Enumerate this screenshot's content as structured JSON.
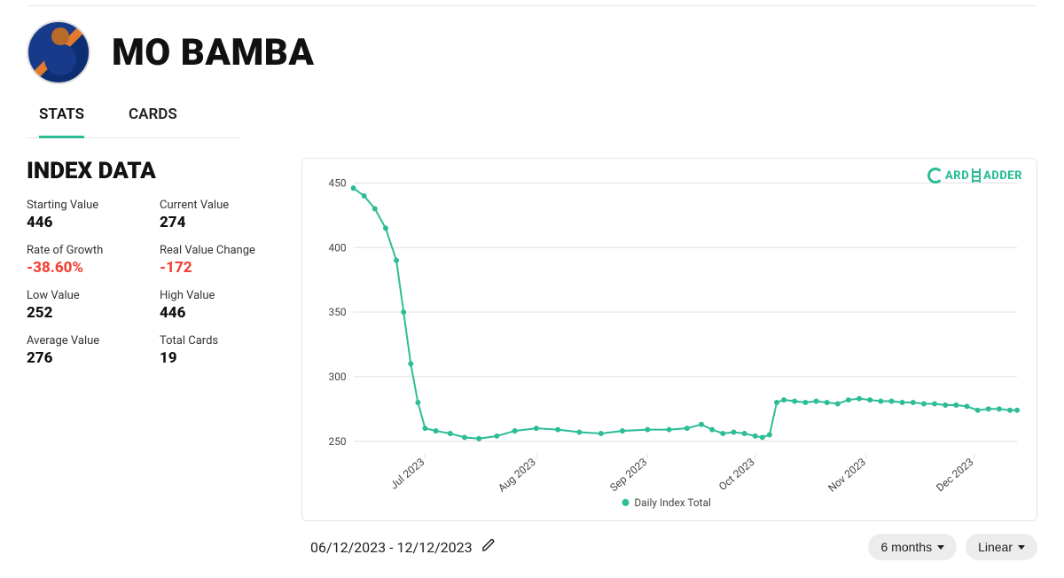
{
  "player": {
    "name": "MO BAMBA"
  },
  "tabs": {
    "stats": "STATS",
    "cards": "CARDS",
    "active": "stats"
  },
  "section_title": "INDEX DATA",
  "stats": {
    "starting_value": {
      "label": "Starting Value",
      "value": "446"
    },
    "current_value": {
      "label": "Current Value",
      "value": "274"
    },
    "rate_of_growth": {
      "label": "Rate of Growth",
      "value": "-38.60%",
      "negative": true
    },
    "real_value_change": {
      "label": "Real Value Change",
      "value": "-172",
      "negative": true
    },
    "low_value": {
      "label": "Low Value",
      "value": "252"
    },
    "high_value": {
      "label": "High Value",
      "value": "446"
    },
    "average_value": {
      "label": "Average Value",
      "value": "276"
    },
    "total_cards": {
      "label": "Total Cards",
      "value": "19"
    }
  },
  "date_range": "06/12/2023 - 12/12/2023",
  "controls": {
    "range": "6 months",
    "scale": "Linear"
  },
  "brand": {
    "left": "ARD",
    "right": "ADDER"
  },
  "chart": {
    "type": "line",
    "series_name": "Daily Index Total",
    "line_color": "#2dbd96",
    "line_width": 2,
    "marker_radius": 3,
    "background_color": "#ffffff",
    "grid_color": "#e0e0e0",
    "axis_text_color": "#444444",
    "axis_fontsize": 12,
    "ylim": [
      240,
      455
    ],
    "yticks": [
      250,
      300,
      350,
      400,
      450
    ],
    "xlim": [
      0,
      185
    ],
    "xticks": [
      {
        "pos": 20,
        "label": "Jul 2023"
      },
      {
        "pos": 51,
        "label": "Aug 2023"
      },
      {
        "pos": 82,
        "label": "Sep 2023"
      },
      {
        "pos": 112,
        "label": "Oct 2023"
      },
      {
        "pos": 143,
        "label": "Nov 2023"
      },
      {
        "pos": 173,
        "label": "Dec 2023"
      }
    ],
    "data": [
      {
        "x": 0,
        "y": 446
      },
      {
        "x": 3,
        "y": 440
      },
      {
        "x": 6,
        "y": 430
      },
      {
        "x": 9,
        "y": 415
      },
      {
        "x": 12,
        "y": 390
      },
      {
        "x": 14,
        "y": 350
      },
      {
        "x": 16,
        "y": 310
      },
      {
        "x": 18,
        "y": 280
      },
      {
        "x": 20,
        "y": 260
      },
      {
        "x": 23,
        "y": 258
      },
      {
        "x": 27,
        "y": 256
      },
      {
        "x": 31,
        "y": 253
      },
      {
        "x": 35,
        "y": 252
      },
      {
        "x": 40,
        "y": 254
      },
      {
        "x": 45,
        "y": 258
      },
      {
        "x": 51,
        "y": 260
      },
      {
        "x": 57,
        "y": 259
      },
      {
        "x": 63,
        "y": 257
      },
      {
        "x": 69,
        "y": 256
      },
      {
        "x": 75,
        "y": 258
      },
      {
        "x": 82,
        "y": 259
      },
      {
        "x": 88,
        "y": 259
      },
      {
        "x": 93,
        "y": 260
      },
      {
        "x": 97,
        "y": 263
      },
      {
        "x": 100,
        "y": 259
      },
      {
        "x": 103,
        "y": 256
      },
      {
        "x": 106,
        "y": 257
      },
      {
        "x": 109,
        "y": 256
      },
      {
        "x": 112,
        "y": 254
      },
      {
        "x": 114,
        "y": 253
      },
      {
        "x": 116,
        "y": 255
      },
      {
        "x": 118,
        "y": 280
      },
      {
        "x": 120,
        "y": 282
      },
      {
        "x": 123,
        "y": 281
      },
      {
        "x": 126,
        "y": 280
      },
      {
        "x": 129,
        "y": 281
      },
      {
        "x": 132,
        "y": 280
      },
      {
        "x": 135,
        "y": 279
      },
      {
        "x": 138,
        "y": 282
      },
      {
        "x": 141,
        "y": 283
      },
      {
        "x": 144,
        "y": 282
      },
      {
        "x": 147,
        "y": 281
      },
      {
        "x": 150,
        "y": 281
      },
      {
        "x": 153,
        "y": 280
      },
      {
        "x": 156,
        "y": 280
      },
      {
        "x": 159,
        "y": 279
      },
      {
        "x": 162,
        "y": 279
      },
      {
        "x": 165,
        "y": 278
      },
      {
        "x": 168,
        "y": 278
      },
      {
        "x": 171,
        "y": 277
      },
      {
        "x": 174,
        "y": 274
      },
      {
        "x": 177,
        "y": 275
      },
      {
        "x": 180,
        "y": 275
      },
      {
        "x": 183,
        "y": 274
      },
      {
        "x": 185,
        "y": 274
      }
    ]
  }
}
